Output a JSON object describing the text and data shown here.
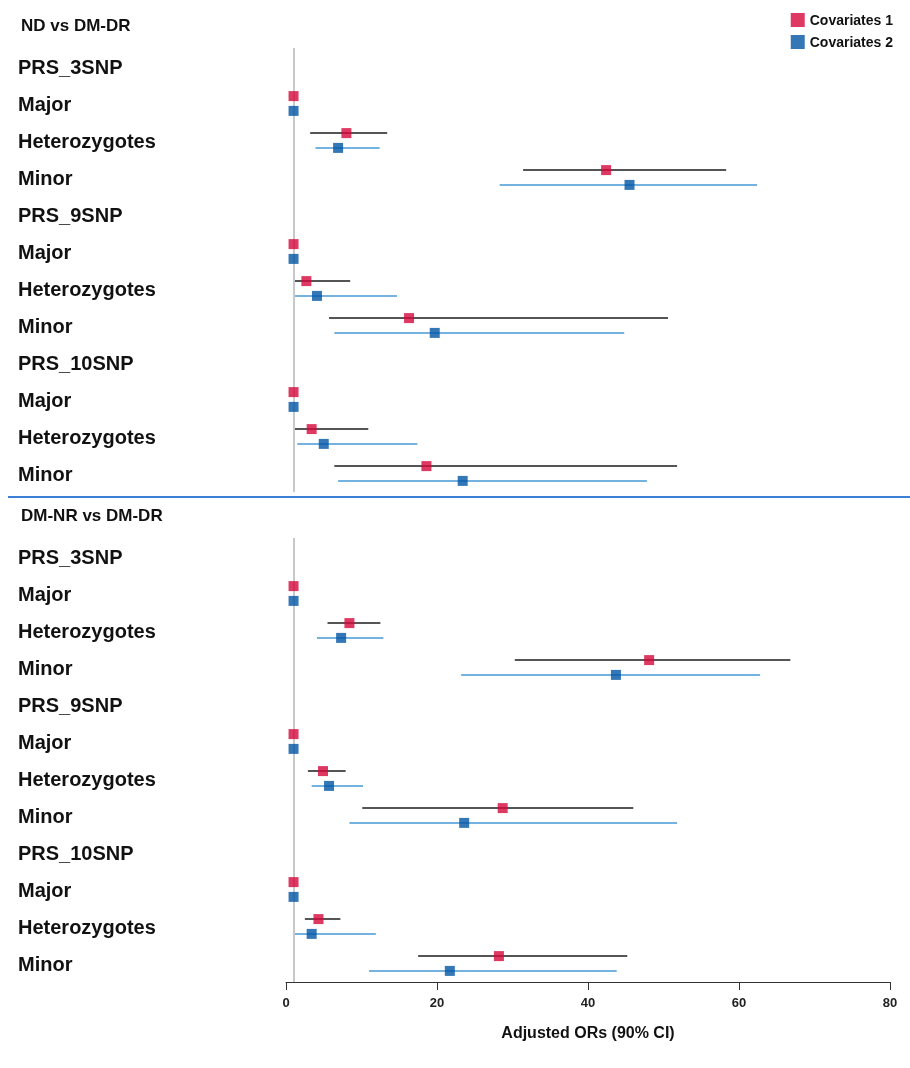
{
  "chart_data": [
    {
      "type": "scatter",
      "title": "ND vs DM-DR",
      "orientation": "horizontal",
      "marker": "square",
      "legend": "top right",
      "tick_labels": "y",
      "xlim": [
        0,
        80
      ],
      "xticks": [
        0,
        20,
        40,
        60,
        80
      ],
      "categories": [
        "PRS_3SNP",
        "Major",
        "Heterozygotes",
        "Minor",
        "PRS_9SNP",
        "Major",
        "Heterozygotes",
        "Minor",
        "PRS_10SNP",
        "Major",
        "Heterozygotes",
        "Minor"
      ],
      "ref_lines": [
        {
          "axis": "x",
          "value": 1,
          "color": "#c8c8c8"
        }
      ],
      "series": [
        {
          "name": "Covariates 1",
          "color": "#d6083b",
          "values": [
            null,
            1,
            8.0,
            42.4,
            null,
            1,
            2.7,
            16.3,
            null,
            1,
            3.4,
            18.6
          ],
          "errors": [
            null,
            null,
            [
              3.2,
              13.4
            ],
            [
              31.4,
              58.3
            ],
            null,
            null,
            [
              1.0,
              8.5
            ],
            [
              5.7,
              50.6
            ],
            null,
            null,
            [
              1.0,
              10.9
            ],
            [
              6.4,
              51.8
            ]
          ]
        },
        {
          "name": "Covariates 2",
          "color": "#0055a4",
          "values": [
            null,
            1,
            6.9,
            45.5,
            null,
            1,
            4.1,
            19.7,
            null,
            1,
            5.0,
            23.4
          ],
          "errors": [
            null,
            null,
            [
              3.9,
              12.4
            ],
            [
              28.3,
              62.4
            ],
            null,
            null,
            [
              1.2,
              14.7
            ],
            [
              6.4,
              44.8
            ],
            null,
            null,
            [
              1.5,
              17.4
            ],
            [
              6.9,
              47.8
            ]
          ]
        }
      ]
    },
    {
      "type": "scatter",
      "title": "DM-NR vs DM-DR",
      "orientation": "horizontal",
      "marker": "square",
      "xlabel": "Adjusted ORs (90% CI)",
      "xlim": [
        0,
        80
      ],
      "xticks": [
        0,
        20,
        40,
        60,
        80
      ],
      "categories": [
        "PRS_3SNP",
        "Major",
        "Heterozygotes",
        "Minor",
        "PRS_9SNP",
        "Major",
        "Heterozygotes",
        "Minor",
        "PRS_10SNP",
        "Major",
        "Heterozygotes",
        "Minor"
      ],
      "ref_lines": [
        {
          "axis": "x",
          "value": 1,
          "color": "#c8c8c8"
        }
      ],
      "series": [
        {
          "color": "#d6083b",
          "values": [
            null,
            1,
            8.4,
            48.1,
            null,
            1,
            4.9,
            28.7,
            null,
            1,
            4.3,
            28.2
          ],
          "errors": [
            null,
            null,
            [
              5.5,
              12.5
            ],
            [
              30.3,
              66.8
            ],
            null,
            null,
            [
              2.9,
              7.9
            ],
            [
              10.1,
              46.0
            ],
            null,
            null,
            [
              2.5,
              7.2
            ],
            [
              17.5,
              45.2
            ]
          ]
        },
        {
          "color": "#0055a4",
          "values": [
            null,
            1,
            7.3,
            43.7,
            null,
            1,
            5.7,
            23.6,
            null,
            1,
            3.4,
            21.7
          ],
          "errors": [
            null,
            null,
            [
              4.1,
              12.9
            ],
            [
              23.2,
              62.8
            ],
            null,
            null,
            [
              3.4,
              10.2
            ],
            [
              8.4,
              51.8
            ],
            null,
            null,
            [
              1.0,
              11.9
            ],
            [
              11.0,
              43.8
            ]
          ]
        }
      ]
    }
  ]
}
